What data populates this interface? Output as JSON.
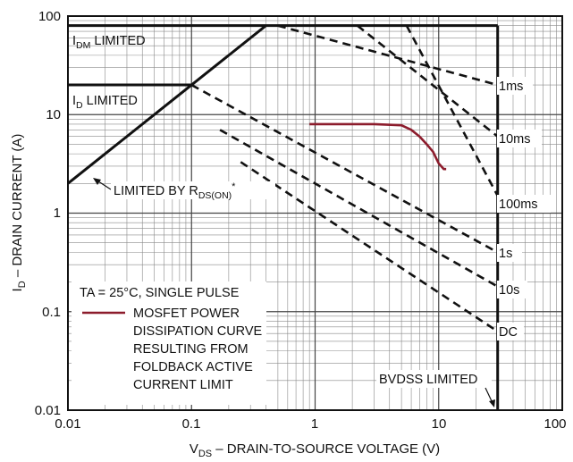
{
  "chart_data": {
    "type": "line",
    "title": "",
    "x_axis": {
      "label_main": "V",
      "label_sub": "DS",
      "label_rest": " – DRAIN-TO-SOURCE VOLTAGE (V)",
      "scale": "log",
      "range": [
        0.01,
        100
      ],
      "ticks": [
        0.01,
        0.1,
        1,
        10,
        100
      ],
      "tick_labels": [
        "0.01",
        "0.1",
        "1",
        "10",
        "100"
      ]
    },
    "y_axis": {
      "label_main": "I",
      "label_sub": "D",
      "label_rest": " – DRAIN CURRENT (A)",
      "scale": "log",
      "range": [
        0.01,
        100
      ],
      "ticks": [
        0.01,
        0.1,
        1,
        10,
        100
      ],
      "tick_labels": [
        "0.01",
        "0.1",
        "1",
        "10",
        "100"
      ]
    },
    "grid": true,
    "limits": {
      "idm_current": 80,
      "id_current": 20,
      "bvdss_voltage": 30,
      "rds_on_line": [
        [
          0.01,
          2
        ],
        [
          0.1,
          20
        ],
        [
          0.4,
          80
        ]
      ]
    },
    "pulse_lines": [
      {
        "name": "1ms",
        "x": [
          0.5,
          30
        ],
        "y": [
          80,
          20
        ]
      },
      {
        "name": "10ms",
        "x": [
          2.2,
          30
        ],
        "y": [
          80,
          6
        ]
      },
      {
        "name": "100ms",
        "x": [
          5.5,
          30
        ],
        "y": [
          80,
          1.5
        ]
      },
      {
        "name": "1s",
        "x": [
          0.1,
          30
        ],
        "y": [
          20,
          0.4
        ]
      },
      {
        "name": "10s",
        "x": [
          0.17,
          30
        ],
        "y": [
          7,
          0.18
        ]
      },
      {
        "name": "DC",
        "x": [
          0.25,
          30
        ],
        "y": [
          3.3,
          0.063
        ]
      }
    ],
    "mosfet_curve": {
      "color": "#8c1c2c",
      "x": [
        0.9,
        1.5,
        3,
        5,
        6,
        7,
        8,
        9,
        10,
        11,
        11.5
      ],
      "y": [
        8,
        8,
        8,
        7.8,
        7,
        6,
        5,
        4.2,
        3.2,
        2.8,
        2.8
      ]
    },
    "labels": {
      "idm_main": "I",
      "idm_sub": "DM",
      "idm_rest": " LIMITED",
      "id_main": "I",
      "id_sub": "D",
      "id_rest": " LIMITED",
      "rds_main": "LIMITED BY R",
      "rds_sub": "DS(ON)",
      "rds_sup": "*",
      "bvdss": "BVDSS LIMITED",
      "pulse_labels": [
        "1ms",
        "10ms",
        "100ms",
        "1s",
        "10s",
        "DC"
      ]
    },
    "legend": {
      "header": "TA = 25°C, SINGLE PULSE",
      "lines": [
        "MOSFET POWER",
        "DISSIPATION CURVE",
        "RESULTING FROM",
        "FOLDBACK ACTIVE",
        "CURRENT LIMIT"
      ]
    }
  }
}
